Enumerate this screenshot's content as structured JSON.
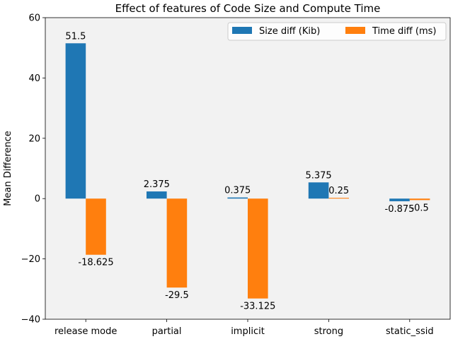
{
  "chart_data": {
    "type": "bar",
    "title": "Effect of features of Code Size and Compute Time",
    "xlabel": "",
    "ylabel": "Mean Difference",
    "categories": [
      "release mode",
      "partial",
      "implicit",
      "strong",
      "static_ssid"
    ],
    "series": [
      {
        "name": "Size diff (Kib)",
        "color": "#1f77b4",
        "values": [
          51.5,
          2.375,
          0.375,
          5.375,
          -0.875
        ],
        "labels": [
          "51.5",
          "2.375",
          "0.375",
          "5.375",
          "-0.875"
        ]
      },
      {
        "name": "Time diff (ms)",
        "color": "#ff7f0e",
        "values": [
          -18.625,
          -29.5,
          -33.125,
          0.25,
          -0.5
        ],
        "labels": [
          "-18.625",
          "-29.5",
          "-33.125",
          "0.25",
          "-0.5"
        ]
      }
    ],
    "ylim": [
      -40,
      60
    ],
    "yticks": [
      -40,
      -20,
      0,
      20,
      40,
      60
    ],
    "ytick_labels": [
      "−40",
      "−20",
      "0",
      "20",
      "40",
      "60"
    ],
    "legend_position": "top-right",
    "legend_columns": 2,
    "grid": false,
    "plot_background": "#f2f2f2"
  }
}
